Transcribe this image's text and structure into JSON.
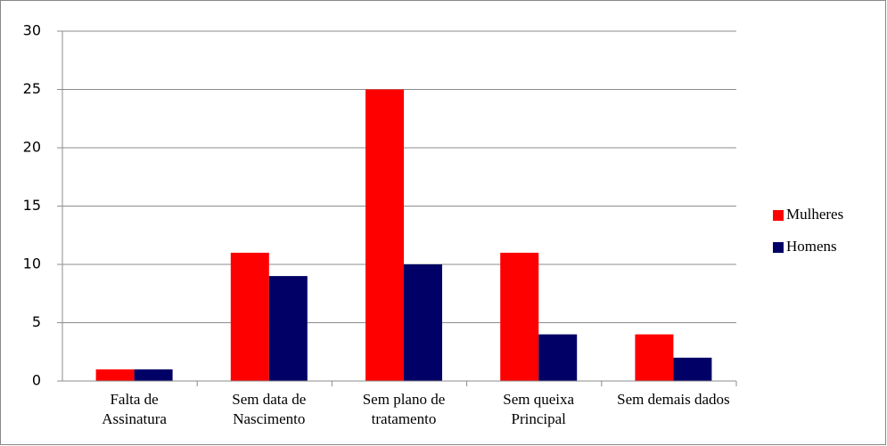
{
  "chart_data": {
    "type": "bar",
    "categories": [
      "Falta de Assinatura",
      "Sem data de Nascimento",
      "Sem plano de tratamento",
      "Sem queixa Principal",
      "Sem demais dados"
    ],
    "series": [
      {
        "name": "Mulheres",
        "color": "#ff0000",
        "values": [
          1,
          11,
          25,
          11,
          4
        ]
      },
      {
        "name": "Homens",
        "color": "#000066",
        "values": [
          1,
          9,
          10,
          4,
          2
        ]
      }
    ],
    "ylim": [
      0,
      30
    ],
    "yticks": [
      0,
      5,
      10,
      15,
      20,
      25,
      30
    ],
    "grid": true,
    "legend": "right"
  }
}
